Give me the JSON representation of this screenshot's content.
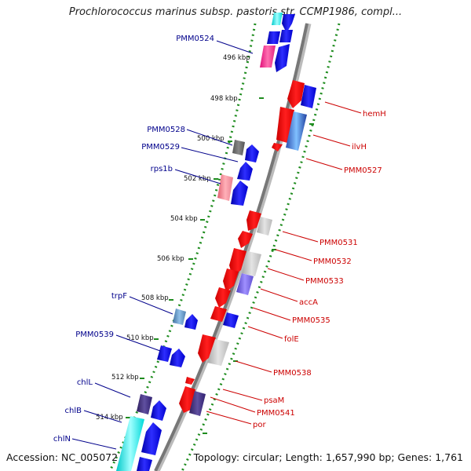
{
  "title": "Prochlorococcus marinus subsp. pastoris str. CCMP1986, compl...",
  "footer": {
    "accession": "Accession: NC_005072",
    "summary": "Topology: circular; Length: 1,657,990 bp; Genes: 1,761"
  },
  "colors": {
    "forward_label": "#00008b",
    "reverse_label": "#cc0000",
    "backbone": "#888888",
    "dotted_track": "#1e8c1e"
  },
  "ticks": [
    "496 kbp",
    "498 kbp",
    "500 kbp",
    "502 kbp",
    "504 kbp",
    "506 kbp",
    "508 kbp",
    "510 kbp",
    "512 kbp",
    "514 kbp"
  ],
  "forward_labels": [
    "PMM0524",
    "PMM0528",
    "PMM0529",
    "rps1b",
    "trpF",
    "PMM0539",
    "chlL",
    "chlB",
    "chlN"
  ],
  "reverse_labels": [
    "hemH",
    "ilvH",
    "PMM0527",
    "PMM0531",
    "PMM0532",
    "PMM0533",
    "accA",
    "PMM0535",
    "folE",
    "PMM0538",
    "psaM",
    "PMM0541",
    "por"
  ]
}
